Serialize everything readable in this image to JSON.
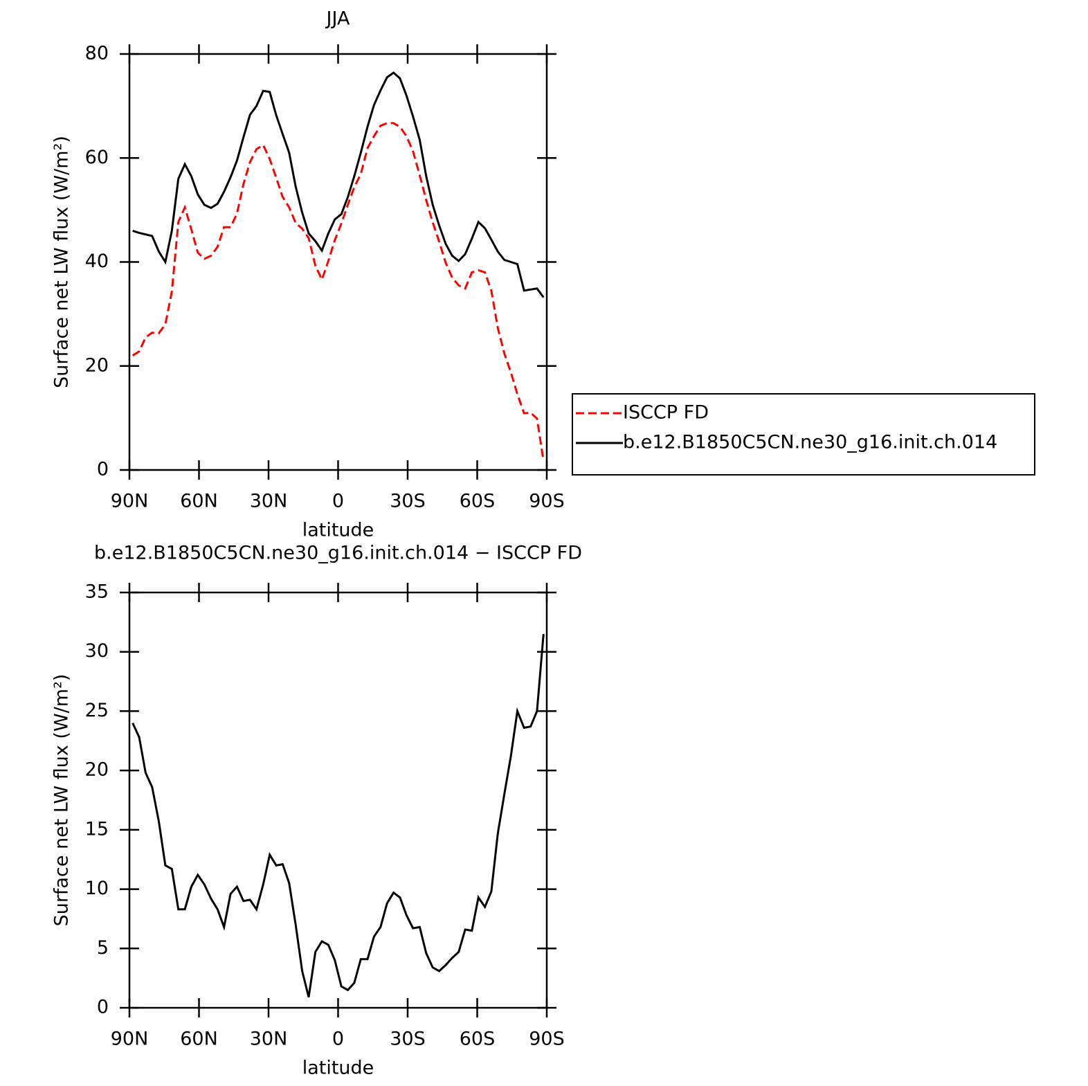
{
  "chart_data": [
    {
      "type": "line",
      "title": "JJA",
      "xlabel": "latitude",
      "ylabel": "Surface net LW flux (W/m²)",
      "x": [
        88.6,
        85.8,
        83.0,
        80.2,
        77.3,
        74.5,
        71.7,
        68.9,
        66.1,
        63.3,
        60.5,
        57.7,
        54.8,
        52.0,
        49.2,
        46.4,
        43.6,
        40.8,
        38.0,
        35.2,
        32.3,
        29.5,
        26.7,
        23.9,
        21.1,
        18.3,
        15.5,
        12.7,
        9.8,
        7.0,
        4.2,
        1.4,
        -1.4,
        -4.2,
        -7.0,
        -9.8,
        -12.7,
        -15.5,
        -18.3,
        -21.1,
        -23.9,
        -26.7,
        -29.5,
        -32.3,
        -35.2,
        -38.0,
        -40.8,
        -43.6,
        -46.4,
        -49.2,
        -52.0,
        -54.8,
        -57.7,
        -60.5,
        -63.3,
        -66.1,
        -68.9,
        -71.7,
        -74.5,
        -77.3,
        -80.2,
        -83.0,
        -85.8,
        -88.6
      ],
      "xlim": [
        90,
        -90
      ],
      "xticks": [
        {
          "value": 90,
          "label": "90N"
        },
        {
          "value": 60,
          "label": "60N"
        },
        {
          "value": 30,
          "label": "30N"
        },
        0,
        {
          "value": -30,
          "label": "30S"
        },
        {
          "value": -60,
          "label": "60S"
        },
        {
          "value": -90,
          "label": "90S"
        }
      ],
      "ylim": [
        0,
        80
      ],
      "yticks": [
        0,
        20,
        40,
        60,
        80
      ],
      "legend": "right",
      "series": [
        {
          "name": "ISCCP FD",
          "color": "#ff0000",
          "line_style": "dashed",
          "values": [
            22,
            22.8,
            25.5,
            26.4,
            26.3,
            28,
            34.3,
            47.7,
            50.5,
            46.3,
            41.8,
            40.6,
            41.2,
            42.9,
            46.7,
            46.7,
            49.3,
            55,
            59.2,
            61.7,
            62.5,
            59.8,
            56.2,
            52.5,
            50.5,
            47.5,
            46.4,
            44.6,
            39.3,
            36.6,
            40.2,
            44.2,
            47.4,
            51,
            54.4,
            56.9,
            61.9,
            64.2,
            66.2,
            66.7,
            66.7,
            66,
            64.2,
            61.3,
            56.7,
            51.9,
            47.6,
            43.9,
            39.9,
            37,
            35.5,
            34.9,
            38,
            38.4,
            38,
            34.5,
            27.3,
            22.4,
            18.8,
            14.6,
            10.9,
            11,
            9.9,
            1.7
          ]
        },
        {
          "name": "b.e12.B1850C5CN.ne30_g16.init.ch.014",
          "color": "#000000",
          "line_style": "solid",
          "values": [
            46,
            45.6,
            45.3,
            45,
            42,
            40,
            46,
            56,
            58.8,
            56.5,
            53,
            51,
            50.4,
            51.2,
            53.5,
            56.3,
            59.5,
            64,
            68.3,
            70,
            72.9,
            72.7,
            68.2,
            64.6,
            61,
            54.5,
            49.5,
            45.5,
            44,
            42.2,
            45.5,
            48.2,
            49.2,
            52.5,
            56.5,
            61,
            66,
            70.2,
            73,
            75.5,
            76.4,
            75.3,
            72,
            68,
            63.5,
            56.5,
            51,
            47,
            43.5,
            41.2,
            40.2,
            41.5,
            44.5,
            47.7,
            46.5,
            44.3,
            42,
            40.4,
            40,
            39.6,
            34.5,
            34.7,
            34.9,
            33.2
          ]
        }
      ]
    },
    {
      "type": "line",
      "title": "b.e12.B1850C5CN.ne30_g16.init.ch.014 − ISCCP FD",
      "xlabel": "latitude",
      "ylabel": "Surface net LW flux (W/m²)",
      "x": [
        88.6,
        85.8,
        83.0,
        80.2,
        77.3,
        74.5,
        71.7,
        68.9,
        66.1,
        63.3,
        60.5,
        57.7,
        54.8,
        52.0,
        49.2,
        46.4,
        43.6,
        40.8,
        38.0,
        35.2,
        32.3,
        29.5,
        26.7,
        23.9,
        21.1,
        18.3,
        15.5,
        12.7,
        9.8,
        7.0,
        4.2,
        1.4,
        -1.4,
        -4.2,
        -7.0,
        -9.8,
        -12.7,
        -15.5,
        -18.3,
        -21.1,
        -23.9,
        -26.7,
        -29.5,
        -32.3,
        -35.2,
        -38.0,
        -40.8,
        -43.6,
        -46.4,
        -49.2,
        -52.0,
        -54.8,
        -57.7,
        -60.5,
        -63.3,
        -66.1,
        -68.9,
        -71.7,
        -74.5,
        -77.3,
        -80.2,
        -83.0,
        -85.8,
        -88.6
      ],
      "xlim": [
        90,
        -90
      ],
      "xticks": [
        {
          "value": 90,
          "label": "90N"
        },
        {
          "value": 60,
          "label": "60N"
        },
        {
          "value": 30,
          "label": "30N"
        },
        0,
        {
          "value": -30,
          "label": "30S"
        },
        {
          "value": -60,
          "label": "60S"
        },
        {
          "value": -90,
          "label": "90S"
        }
      ],
      "ylim": [
        0,
        35
      ],
      "yticks": [
        0,
        5,
        10,
        15,
        20,
        25,
        30,
        35
      ],
      "color": "#000000",
      "values": [
        24,
        22.8,
        19.8,
        18.6,
        15.7,
        12,
        11.7,
        8.3,
        8.3,
        10.2,
        11.2,
        10.4,
        9.2,
        8.3,
        6.8,
        9.6,
        10.2,
        9,
        9.1,
        8.3,
        10.4,
        12.9,
        12,
        12.1,
        10.5,
        7,
        3.1,
        0.9,
        4.7,
        5.6,
        5.3,
        4,
        1.8,
        1.5,
        2.1,
        4.1,
        4.1,
        6,
        6.8,
        8.8,
        9.7,
        9.3,
        7.8,
        6.7,
        6.8,
        4.6,
        3.4,
        3.1,
        3.6,
        4.2,
        4.7,
        6.6,
        6.5,
        9.3,
        8.5,
        9.8,
        14.7,
        18,
        21.2,
        25,
        23.6,
        23.7,
        25,
        31.5
      ]
    }
  ]
}
